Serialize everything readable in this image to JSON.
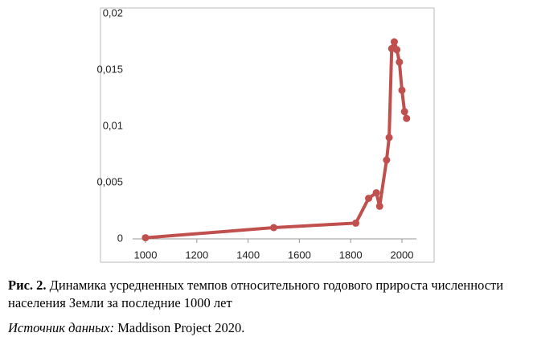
{
  "chart_data": {
    "type": "line",
    "x": [
      1000,
      1500,
      1820,
      1870,
      1900,
      1913,
      1940,
      1950,
      1960,
      1970,
      1980,
      1990,
      2000,
      2010,
      2018
    ],
    "series": [
      {
        "color": "#c0504d",
        "values": [
          0.0001,
          0.001,
          0.0014,
          0.0036,
          0.0041,
          0.0029,
          0.007,
          0.009,
          0.0169,
          0.0175,
          0.0168,
          0.0157,
          0.0132,
          0.0113,
          0.0107
        ]
      }
    ],
    "xlim": [
      1000,
      2000
    ],
    "xticks": [
      1000,
      1200,
      1400,
      1600,
      1800,
      2000
    ],
    "ylim": [
      0,
      0.02
    ],
    "yticks": [
      0,
      {
        "value": 0.005,
        "label": "0,005"
      },
      {
        "value": 0.01,
        "label": "0,01"
      },
      {
        "value": 0.015,
        "label": "0,015"
      },
      {
        "value": 0.02,
        "label": "0,02"
      }
    ]
  },
  "caption": {
    "label": "Рис. 2.",
    "text": "Динамика усредненных темпов относительного годового прироста численности населения Земли за последние 1000 лет"
  },
  "source": {
    "label": "Источник данных:",
    "text": "Maddison Project 2020."
  }
}
